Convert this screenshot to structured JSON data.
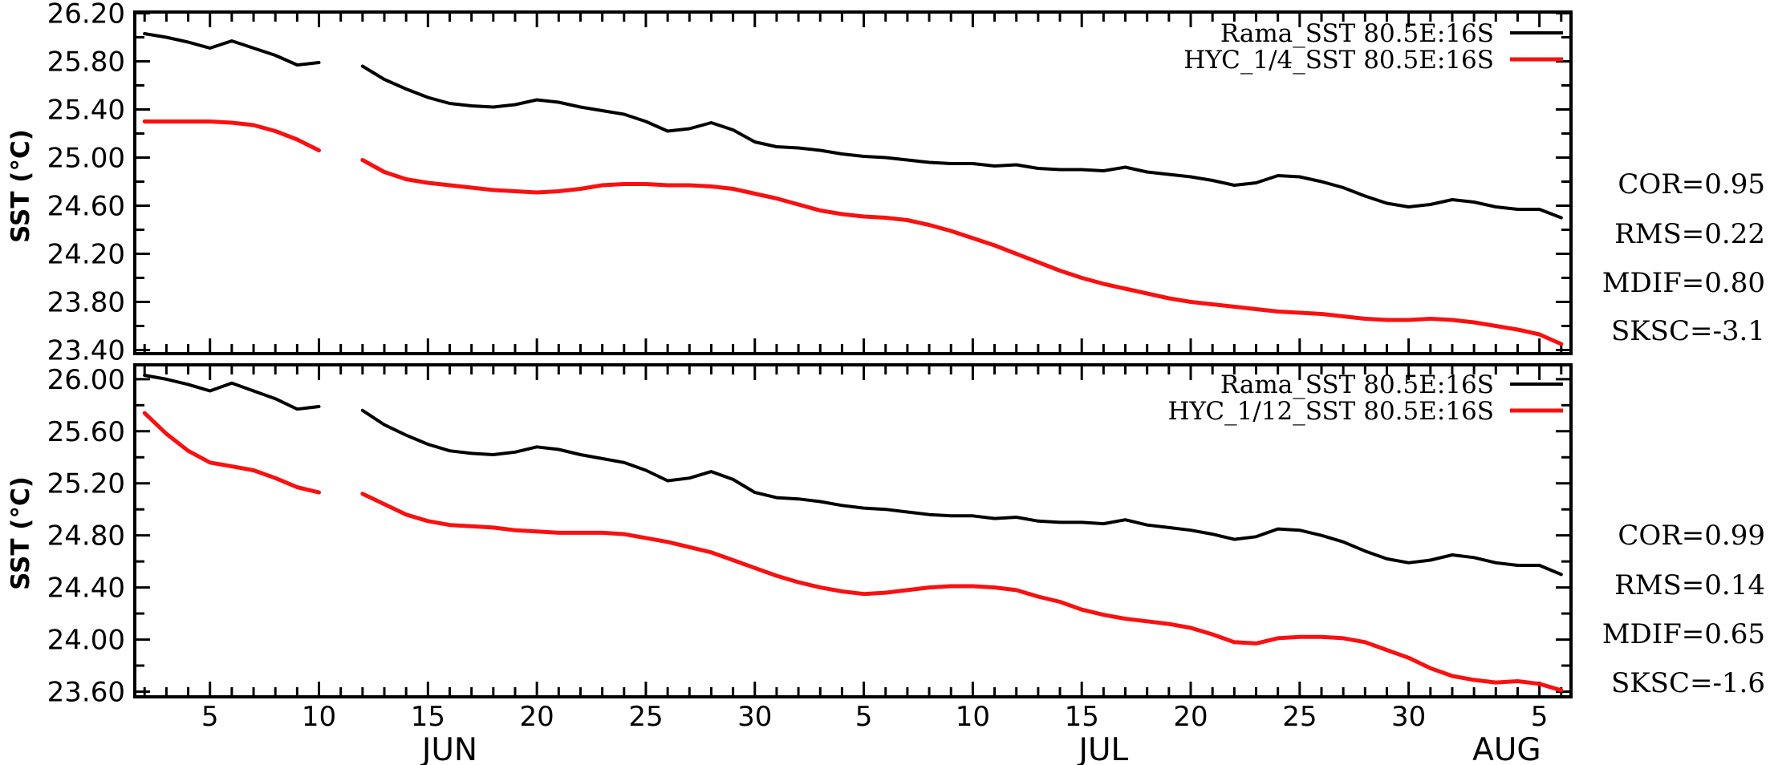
{
  "figure": {
    "background": "#ffffff",
    "axis_color": "#000000",
    "y_axis_title": "SST (°C)",
    "x_month_labels": [
      "JUN",
      "JUL",
      "AUG"
    ],
    "x_day_tick_labels": [
      5,
      10,
      15,
      20,
      25,
      30,
      5,
      10,
      15,
      20,
      25,
      30,
      5
    ],
    "x_months": [
      {
        "label": "JUN",
        "first_day": 2,
        "last_day": 30
      },
      {
        "label": "JUL",
        "first_day": 1,
        "last_day": 31
      },
      {
        "label": "AUG",
        "first_day": 1,
        "last_day": 6
      }
    ],
    "missing_data_note": "gap at Jun 11 in all series"
  },
  "chart_data": [
    {
      "type": "line",
      "panel": "top",
      "ylabel": "SST (°C)",
      "ylim": [
        23.4,
        26.2
      ],
      "ytick_major_step": 0.4,
      "ytick_minor_step": 0.2,
      "ylim_draw": [
        23.37,
        26.21
      ],
      "x_start": "JUN 2",
      "x_end": "AUG 6",
      "grid": false,
      "legend_position": "top-right",
      "series": [
        {
          "name": "Rama_SST 80.5E:16S",
          "color": "#000000",
          "values": [
            26.03,
            26.0,
            25.96,
            25.91,
            25.97,
            25.91,
            25.85,
            25.77,
            25.79,
            null,
            25.76,
            25.65,
            25.57,
            25.5,
            25.45,
            25.43,
            25.42,
            25.44,
            25.48,
            25.46,
            25.42,
            25.39,
            25.36,
            25.3,
            25.22,
            25.24,
            25.29,
            25.23,
            25.13,
            25.09,
            25.08,
            25.06,
            25.03,
            25.01,
            25.0,
            24.98,
            24.96,
            24.95,
            24.95,
            24.93,
            24.94,
            24.91,
            24.9,
            24.9,
            24.89,
            24.92,
            24.88,
            24.86,
            24.84,
            24.81,
            24.77,
            24.79,
            24.85,
            24.84,
            24.8,
            24.75,
            24.68,
            24.62,
            24.59,
            24.61,
            24.65,
            24.63,
            24.59,
            24.57,
            24.57,
            24.5
          ]
        },
        {
          "name": "HYC_1/4_SST 80.5E:16S",
          "color": "#fa1010",
          "values": [
            25.3,
            25.3,
            25.3,
            25.3,
            25.29,
            25.27,
            25.22,
            25.15,
            25.06,
            null,
            24.98,
            24.88,
            24.82,
            24.79,
            24.77,
            24.75,
            24.73,
            24.72,
            24.71,
            24.72,
            24.74,
            24.77,
            24.78,
            24.78,
            24.77,
            24.77,
            24.76,
            24.74,
            24.7,
            24.66,
            24.61,
            24.56,
            24.53,
            24.51,
            24.5,
            24.48,
            24.44,
            24.39,
            24.33,
            24.27,
            24.2,
            24.13,
            24.06,
            24.0,
            23.95,
            23.91,
            23.87,
            23.83,
            23.8,
            23.78,
            23.76,
            23.74,
            23.72,
            23.71,
            23.7,
            23.68,
            23.66,
            23.65,
            23.65,
            23.66,
            23.65,
            23.63,
            23.6,
            23.57,
            23.53,
            23.45
          ]
        }
      ],
      "stats": [
        "COR=0.95",
        "RMS=0.22",
        "MDIF=0.80",
        "SKSC=-3.1"
      ]
    },
    {
      "type": "line",
      "panel": "bottom",
      "ylabel": "SST (°C)",
      "ylim": [
        23.6,
        26.0
      ],
      "ytick_major_step": 0.4,
      "ytick_minor_step": 0.2,
      "ylim_draw": [
        23.56,
        26.11
      ],
      "x_start": "JUN 2",
      "x_end": "AUG 6",
      "grid": false,
      "legend_position": "top-right",
      "series": [
        {
          "name": "Rama_SST 80.5E:16S",
          "color": "#000000",
          "values": [
            26.03,
            26.0,
            25.96,
            25.91,
            25.97,
            25.91,
            25.85,
            25.77,
            25.79,
            null,
            25.76,
            25.65,
            25.57,
            25.5,
            25.45,
            25.43,
            25.42,
            25.44,
            25.48,
            25.46,
            25.42,
            25.39,
            25.36,
            25.3,
            25.22,
            25.24,
            25.29,
            25.23,
            25.13,
            25.09,
            25.08,
            25.06,
            25.03,
            25.01,
            25.0,
            24.98,
            24.96,
            24.95,
            24.95,
            24.93,
            24.94,
            24.91,
            24.9,
            24.9,
            24.89,
            24.92,
            24.88,
            24.86,
            24.84,
            24.81,
            24.77,
            24.79,
            24.85,
            24.84,
            24.8,
            24.75,
            24.68,
            24.62,
            24.59,
            24.61,
            24.65,
            24.63,
            24.59,
            24.57,
            24.57,
            24.5
          ]
        },
        {
          "name": "HYC_1/12_SST 80.5E:16S",
          "color": "#fa1010",
          "values": [
            25.74,
            25.58,
            25.45,
            25.36,
            25.33,
            25.3,
            25.24,
            25.17,
            25.13,
            null,
            25.12,
            25.04,
            24.96,
            24.91,
            24.88,
            24.87,
            24.86,
            24.84,
            24.83,
            24.82,
            24.82,
            24.82,
            24.81,
            24.78,
            24.75,
            24.71,
            24.67,
            24.61,
            24.55,
            24.49,
            24.44,
            24.4,
            24.37,
            24.35,
            24.36,
            24.38,
            24.4,
            24.41,
            24.41,
            24.4,
            24.38,
            24.33,
            24.29,
            24.23,
            24.19,
            24.16,
            24.14,
            24.12,
            24.09,
            24.04,
            23.98,
            23.97,
            24.01,
            24.02,
            24.02,
            24.01,
            23.98,
            23.92,
            23.86,
            23.78,
            23.72,
            23.69,
            23.67,
            23.68,
            23.66,
            23.61
          ]
        }
      ],
      "stats": [
        "COR=0.99",
        "RMS=0.14",
        "MDIF=0.65",
        "SKSC=-1.6"
      ]
    }
  ]
}
